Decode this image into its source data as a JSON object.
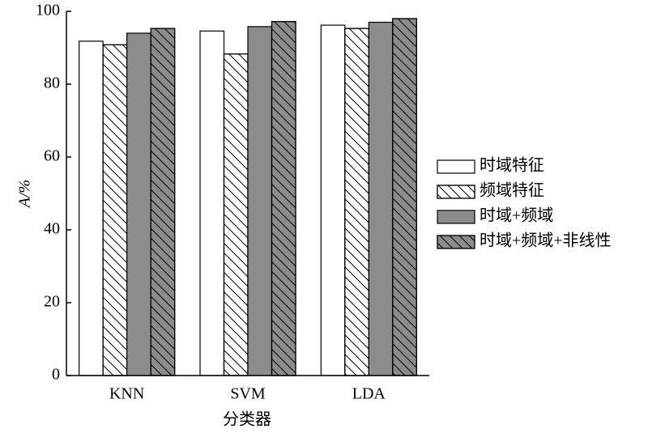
{
  "chart_data": {
    "type": "bar",
    "y_label": "A/%",
    "x_label": "分类器",
    "categories": [
      "KNN",
      "SVM",
      "LDA"
    ],
    "series": [
      {
        "name": "时域特征",
        "color": "#ffffff",
        "hatch": false,
        "values": [
          91.8,
          94.6,
          96.2
        ]
      },
      {
        "name": "频域特征",
        "color": "#ffffff",
        "hatch": true,
        "values": [
          90.8,
          88.3,
          95.3
        ]
      },
      {
        "name": "时域+频域",
        "color": "#8c8c8c",
        "hatch": false,
        "values": [
          94.0,
          95.8,
          97.0
        ]
      },
      {
        "name": "时域+频域+非线性",
        "color": "#8c8c8c",
        "hatch": true,
        "values": [
          95.3,
          97.2,
          98.0
        ]
      }
    ],
    "ylim": [
      0,
      100
    ],
    "yticks": [
      0,
      20,
      40,
      60,
      80,
      100
    ],
    "legend": "right"
  }
}
